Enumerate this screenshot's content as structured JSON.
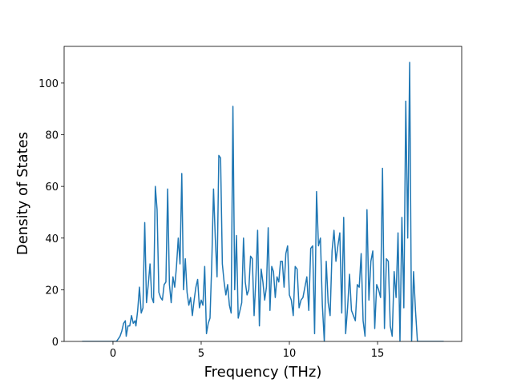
{
  "chart_data": {
    "type": "line",
    "x_label": "Frequency (THz)",
    "y_label": "Density of States",
    "x": [
      -1.75,
      -1,
      -0.5,
      0,
      0.1,
      0.2,
      0.3,
      0.4,
      0.5,
      0.6,
      0.7,
      0.75,
      0.85,
      0.95,
      1.05,
      1.15,
      1.25,
      1.3,
      1.4,
      1.5,
      1.6,
      1.7,
      1.8,
      1.9,
      2.0,
      2.1,
      2.2,
      2.3,
      2.4,
      2.5,
      2.6,
      2.7,
      2.8,
      2.9,
      3.0,
      3.1,
      3.2,
      3.3,
      3.4,
      3.5,
      3.6,
      3.7,
      3.8,
      3.9,
      4.0,
      4.1,
      4.2,
      4.3,
      4.4,
      4.5,
      4.6,
      4.7,
      4.8,
      4.9,
      5.0,
      5.1,
      5.2,
      5.3,
      5.4,
      5.5,
      5.6,
      5.7,
      5.8,
      5.9,
      6.0,
      6.1,
      6.2,
      6.3,
      6.4,
      6.5,
      6.6,
      6.7,
      6.8,
      6.9,
      7.0,
      7.1,
      7.2,
      7.3,
      7.4,
      7.5,
      7.6,
      7.7,
      7.8,
      7.9,
      8.0,
      8.1,
      8.2,
      8.3,
      8.4,
      8.5,
      8.6,
      8.7,
      8.8,
      8.9,
      9.0,
      9.1,
      9.2,
      9.3,
      9.4,
      9.5,
      9.6,
      9.7,
      9.8,
      9.9,
      10.0,
      10.11,
      10.22,
      10.33,
      10.44,
      10.55,
      10.66,
      10.77,
      10.88,
      10.99,
      11.1,
      11.21,
      11.32,
      11.43,
      11.54,
      11.65,
      11.76,
      11.87,
      11.98,
      12.09,
      12.2,
      12.31,
      12.42,
      12.53,
      12.64,
      12.75,
      12.86,
      12.97,
      13.08,
      13.19,
      13.3,
      13.41,
      13.52,
      13.63,
      13.74,
      13.85,
      13.96,
      14.07,
      14.18,
      14.29,
      14.4,
      14.51,
      14.62,
      14.73,
      14.84,
      14.95,
      15.06,
      15.17,
      15.28,
      15.39,
      15.5,
      15.61,
      15.72,
      15.83,
      15.94,
      16.05,
      16.16,
      16.27,
      16.38,
      16.49,
      16.6,
      16.71,
      16.82,
      16.93,
      17.04,
      17.15,
      17.26,
      17.5,
      18.75
    ],
    "values": [
      0,
      0,
      0,
      0,
      0,
      0,
      1,
      2,
      4,
      7,
      8,
      2,
      6,
      6,
      10,
      7,
      8,
      6,
      12,
      21,
      11,
      13,
      46,
      15,
      22,
      30,
      17,
      15,
      60,
      51,
      19,
      17,
      16,
      22,
      23,
      59,
      22,
      15,
      25,
      21,
      29,
      40,
      30,
      65,
      20,
      32,
      19,
      14,
      17,
      10,
      16,
      21,
      24,
      13,
      16,
      14,
      29,
      3,
      7,
      9,
      30,
      59,
      40,
      25,
      72,
      71,
      30,
      23,
      18,
      22,
      14,
      11,
      91,
      20,
      41,
      9,
      12,
      15,
      40,
      23,
      18,
      20,
      33,
      32,
      10,
      24,
      43,
      6,
      28,
      23,
      16,
      21,
      44,
      12,
      29,
      27,
      17,
      25,
      23,
      31,
      31,
      21,
      34,
      37,
      18,
      16,
      10,
      29,
      28,
      13,
      16,
      17,
      21,
      25,
      12,
      36,
      37,
      3,
      58,
      37,
      40,
      14,
      0,
      31,
      15,
      10,
      35,
      43,
      31,
      37,
      42,
      11,
      48,
      3,
      13,
      26,
      12,
      10,
      8,
      22,
      21,
      34,
      8,
      2,
      51,
      16,
      31,
      35,
      5,
      22,
      20,
      17,
      67,
      5,
      32,
      31,
      6,
      2,
      27,
      17,
      42,
      0,
      48,
      13,
      93,
      40,
      108,
      0,
      27,
      12,
      0,
      0,
      0
    ],
    "color": "#1f77b4",
    "xlim": [
      -2.77,
      19.77
    ],
    "ylim": [
      0,
      114.2
    ],
    "xticks": [
      0,
      5,
      10,
      15
    ],
    "yticks": [
      0,
      20,
      40,
      60,
      80,
      100
    ]
  }
}
